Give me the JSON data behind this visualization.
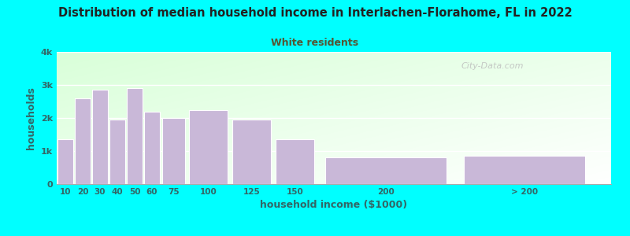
{
  "title": "Distribution of median household income in Interlachen-Florahome, FL in 2022",
  "subtitle": "White residents",
  "xlabel": "household income ($1000)",
  "ylabel": "households",
  "background_outer": "#00FFFF",
  "bar_color": "#c9b8d8",
  "bar_edge_color": "#c9b8d8",
  "title_color": "#222222",
  "subtitle_color": "#555533",
  "axis_label_color": "#336666",
  "tick_label_color": "#336666",
  "categories": [
    "10",
    "20",
    "30",
    "40",
    "50",
    "60",
    "75",
    "100",
    "125",
    "150",
    "200",
    "> 200"
  ],
  "values": [
    1350,
    2600,
    2850,
    1950,
    2900,
    2200,
    2000,
    2250,
    1950,
    1350,
    800,
    850
  ],
  "bar_lefts": [
    0,
    10,
    20,
    30,
    40,
    50,
    60,
    75,
    100,
    125,
    150,
    230
  ],
  "bar_widths": [
    10,
    10,
    10,
    10,
    10,
    10,
    15,
    25,
    25,
    25,
    80,
    80
  ],
  "ylim": [
    0,
    4000
  ],
  "yticks": [
    0,
    1000,
    2000,
    3000,
    4000
  ],
  "ytick_labels": [
    "0",
    "1k",
    "2k",
    "3k",
    "4k"
  ],
  "xlim": [
    0,
    320
  ],
  "watermark": "City-Data.com"
}
